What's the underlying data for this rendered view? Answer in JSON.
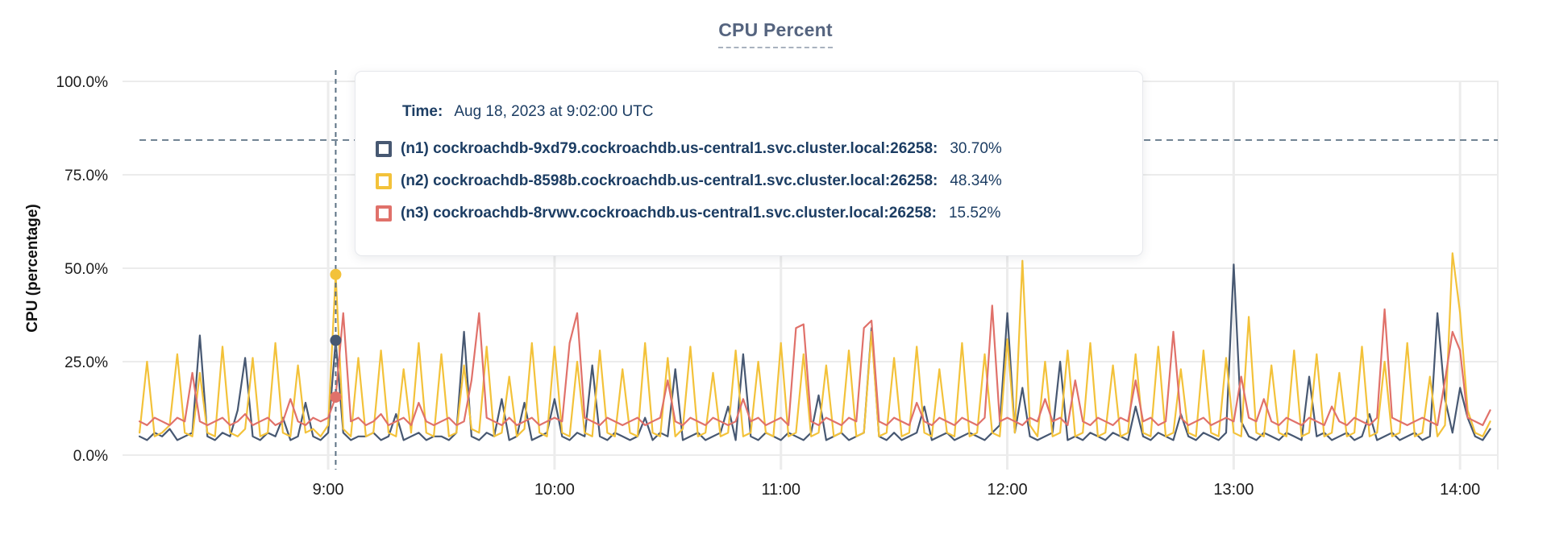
{
  "title": "CPU Percent",
  "colors": {
    "n1": "#475872",
    "n2": "#f3c23a",
    "n3": "#e0716a",
    "grid": "#ececec",
    "dashed": "#5b7184",
    "tooltip_text": "#1c3d63",
    "title": "#55647f",
    "axis_text": "#1c1c1c"
  },
  "tooltip": {
    "time_label": "Time:",
    "time_value": "Aug 18, 2023 at 9:02:00 UTC",
    "rows": [
      {
        "label": "(n1) cockroachdb-9xd79.cockroachdb.us-central1.svc.cluster.local:26258:",
        "value": "30.70%",
        "color": "#475872"
      },
      {
        "label": "(n2) cockroachdb-8598b.cockroachdb.us-central1.svc.cluster.local:26258:",
        "value": "48.34%",
        "color": "#f3c23a"
      },
      {
        "label": "(n3) cockroachdb-8rvwv.cockroachdb.us-central1.svc.cluster.local:26258:",
        "value": "15.52%",
        "color": "#e0716a"
      }
    ]
  },
  "chart_data": {
    "type": "line",
    "title": "CPU Percent",
    "xlabel": "",
    "ylabel": "CPU (percentage)",
    "ylim": [
      0,
      100
    ],
    "grid": true,
    "legend_position": "tooltip-overlay",
    "yticks": [
      {
        "v": 0,
        "label": "0.0%"
      },
      {
        "v": 25,
        "label": "25.0%"
      },
      {
        "v": 50,
        "label": "50.0%"
      },
      {
        "v": 75,
        "label": "75.0%"
      },
      {
        "v": 100,
        "label": "100.0%"
      }
    ],
    "xticks": [
      {
        "t": 540,
        "label": "9:00"
      },
      {
        "t": 600,
        "label": "10:00"
      },
      {
        "t": 660,
        "label": "11:00"
      },
      {
        "t": 720,
        "label": "12:00"
      },
      {
        "t": 780,
        "label": "13:00"
      },
      {
        "t": 840,
        "label": "14:00"
      }
    ],
    "x_domain_minutes": [
      485.5,
      850
    ],
    "x_start_minutes": 490,
    "x_step_minutes": 2,
    "threshold_percent": 84.3,
    "hover": {
      "t": 542,
      "time": "Aug 18, 2023 at 9:02:00 UTC",
      "values": {
        "n1": 30.7,
        "n2": 48.34,
        "n3": 15.52
      }
    },
    "series": [
      {
        "key": "n1",
        "name": "(n1) cockroachdb-9xd79.cockroachdb.us-central1.svc.cluster.local:26258",
        "color": "#475872",
        "values": [
          5,
          4,
          6,
          5,
          7,
          4,
          5,
          6,
          32,
          5,
          4,
          6,
          5,
          12,
          26,
          5,
          4,
          6,
          5,
          10,
          4,
          5,
          14,
          5,
          4,
          6,
          30.7,
          6,
          4,
          5,
          5,
          6,
          4,
          5,
          11,
          4,
          5,
          6,
          4,
          5,
          5,
          4,
          6,
          33,
          5,
          4,
          6,
          5,
          15,
          4,
          5,
          14,
          4,
          5,
          6,
          15,
          5,
          4,
          6,
          5,
          24,
          5,
          4,
          6,
          5,
          4,
          5,
          10,
          4,
          6,
          5,
          23,
          4,
          5,
          6,
          4,
          5,
          6,
          13,
          4,
          27,
          5,
          4,
          6,
          5,
          4,
          6,
          5,
          4,
          6,
          16,
          4,
          5,
          6,
          4,
          5,
          6,
          34,
          5,
          4,
          6,
          4,
          5,
          6,
          13,
          4,
          5,
          6,
          4,
          5,
          6,
          5,
          4,
          6,
          8,
          38,
          6,
          18,
          5,
          4,
          5,
          6,
          25,
          4,
          5,
          4,
          6,
          5,
          4,
          6,
          5,
          4,
          13,
          5,
          4,
          6,
          5,
          4,
          11,
          5,
          4,
          6,
          5,
          4,
          6,
          51,
          9,
          5,
          4,
          6,
          5,
          4,
          6,
          5,
          4,
          21,
          5,
          6,
          4,
          5,
          6,
          4,
          5,
          11,
          4,
          5,
          6,
          4,
          5,
          6,
          4,
          5,
          38,
          15,
          6,
          18,
          10,
          5,
          4,
          7
        ]
      },
      {
        "key": "n2",
        "name": "(n2) cockroachdb-8598b.cockroachdb.us-central1.svc.cluster.local:26258",
        "color": "#f3c23a",
        "values": [
          6,
          25,
          5,
          6,
          8,
          27,
          6,
          5,
          22,
          6,
          5,
          29,
          6,
          5,
          7,
          26,
          5,
          6,
          30,
          6,
          5,
          24,
          6,
          7,
          5,
          8,
          48.34,
          7,
          5,
          26,
          5,
          6,
          28,
          6,
          5,
          23,
          6,
          30,
          6,
          5,
          27,
          5,
          6,
          24,
          7,
          6,
          29,
          5,
          6,
          21,
          5,
          7,
          30,
          6,
          5,
          29,
          6,
          5,
          25,
          6,
          5,
          28,
          6,
          5,
          23,
          6,
          5,
          30,
          6,
          5,
          26,
          5,
          7,
          29,
          5,
          6,
          22,
          5,
          6,
          28,
          5,
          6,
          25,
          6,
          5,
          30,
          5,
          6,
          27,
          5,
          6,
          24,
          5,
          6,
          28,
          5,
          6,
          33,
          5,
          6,
          26,
          5,
          6,
          29,
          6,
          5,
          23,
          6,
          5,
          30,
          5,
          6,
          27,
          6,
          5,
          31,
          6,
          52,
          8,
          5,
          25,
          5,
          6,
          28,
          5,
          6,
          30,
          5,
          6,
          24,
          5,
          6,
          27,
          6,
          5,
          29,
          5,
          6,
          23,
          6,
          5,
          28,
          6,
          5,
          26,
          6,
          5,
          37,
          6,
          5,
          24,
          6,
          5,
          28,
          5,
          6,
          27,
          5,
          6,
          22,
          5,
          6,
          29,
          5,
          6,
          25,
          5,
          6,
          30,
          5,
          6,
          21,
          5,
          8,
          54,
          38,
          12,
          6,
          5,
          9
        ]
      },
      {
        "key": "n3",
        "name": "(n3) cockroachdb-8rvwv.cockroachdb.us-central1.svc.cluster.local:26258",
        "color": "#e0716a",
        "values": [
          9,
          8,
          10,
          9,
          8,
          10,
          9,
          22,
          9,
          8,
          9,
          10,
          8,
          9,
          11,
          8,
          9,
          10,
          8,
          9,
          15,
          9,
          8,
          10,
          9,
          10,
          15.52,
          38,
          9,
          10,
          8,
          9,
          11,
          8,
          9,
          10,
          8,
          14,
          9,
          8,
          9,
          10,
          8,
          9,
          20,
          38,
          10,
          9,
          8,
          10,
          8,
          9,
          10,
          8,
          9,
          10,
          9,
          30,
          38,
          10,
          9,
          8,
          10,
          9,
          8,
          9,
          10,
          8,
          9,
          10,
          20,
          9,
          8,
          10,
          9,
          8,
          10,
          9,
          8,
          9,
          15,
          9,
          10,
          8,
          9,
          10,
          8,
          34,
          35,
          9,
          8,
          10,
          9,
          8,
          10,
          9,
          34,
          36,
          9,
          8,
          10,
          9,
          8,
          14,
          9,
          8,
          10,
          9,
          8,
          10,
          9,
          8,
          10,
          40,
          9,
          10,
          9,
          8,
          10,
          9,
          15,
          9,
          10,
          8,
          20,
          9,
          8,
          10,
          9,
          8,
          10,
          9,
          20,
          9,
          10,
          8,
          9,
          33,
          10,
          8,
          9,
          10,
          8,
          9,
          10,
          9,
          21,
          10,
          9,
          15,
          9,
          8,
          10,
          9,
          8,
          10,
          9,
          8,
          13,
          9,
          8,
          10,
          9,
          8,
          10,
          39,
          10,
          9,
          8,
          9,
          10,
          9,
          8,
          20,
          33,
          28,
          10,
          9,
          8,
          12
        ]
      }
    ]
  }
}
